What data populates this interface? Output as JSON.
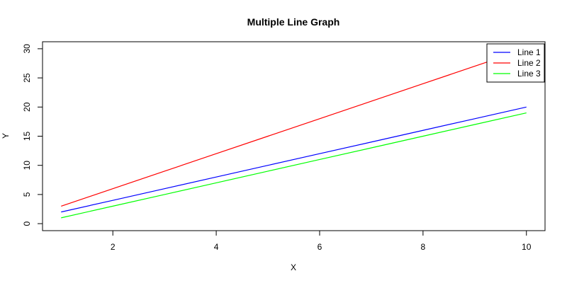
{
  "chart_data": {
    "type": "line",
    "title": "Multiple Line Graph",
    "xlabel": "X",
    "ylabel": "Y",
    "x": [
      1,
      2,
      3,
      4,
      5,
      6,
      7,
      8,
      9,
      10
    ],
    "series": [
      {
        "name": "Line 1",
        "color": "#0000ff",
        "values": [
          2,
          4,
          6,
          8,
          10,
          12,
          14,
          16,
          18,
          20
        ]
      },
      {
        "name": "Line 2",
        "color": "#ff0000",
        "values": [
          3,
          6,
          9,
          12,
          15,
          18,
          21,
          24,
          27,
          30
        ]
      },
      {
        "name": "Line 3",
        "color": "#00ff00",
        "values": [
          1,
          3,
          5,
          7,
          9,
          11,
          13,
          15,
          17,
          19
        ]
      }
    ],
    "xlim": [
      0.64,
      10.36
    ],
    "ylim": [
      -1.2,
      31.2
    ],
    "x_ticks": [
      2,
      4,
      6,
      8,
      10
    ],
    "y_ticks": [
      0,
      5,
      10,
      15,
      20,
      25,
      30
    ],
    "grid": false,
    "legend_position": "top-right"
  }
}
